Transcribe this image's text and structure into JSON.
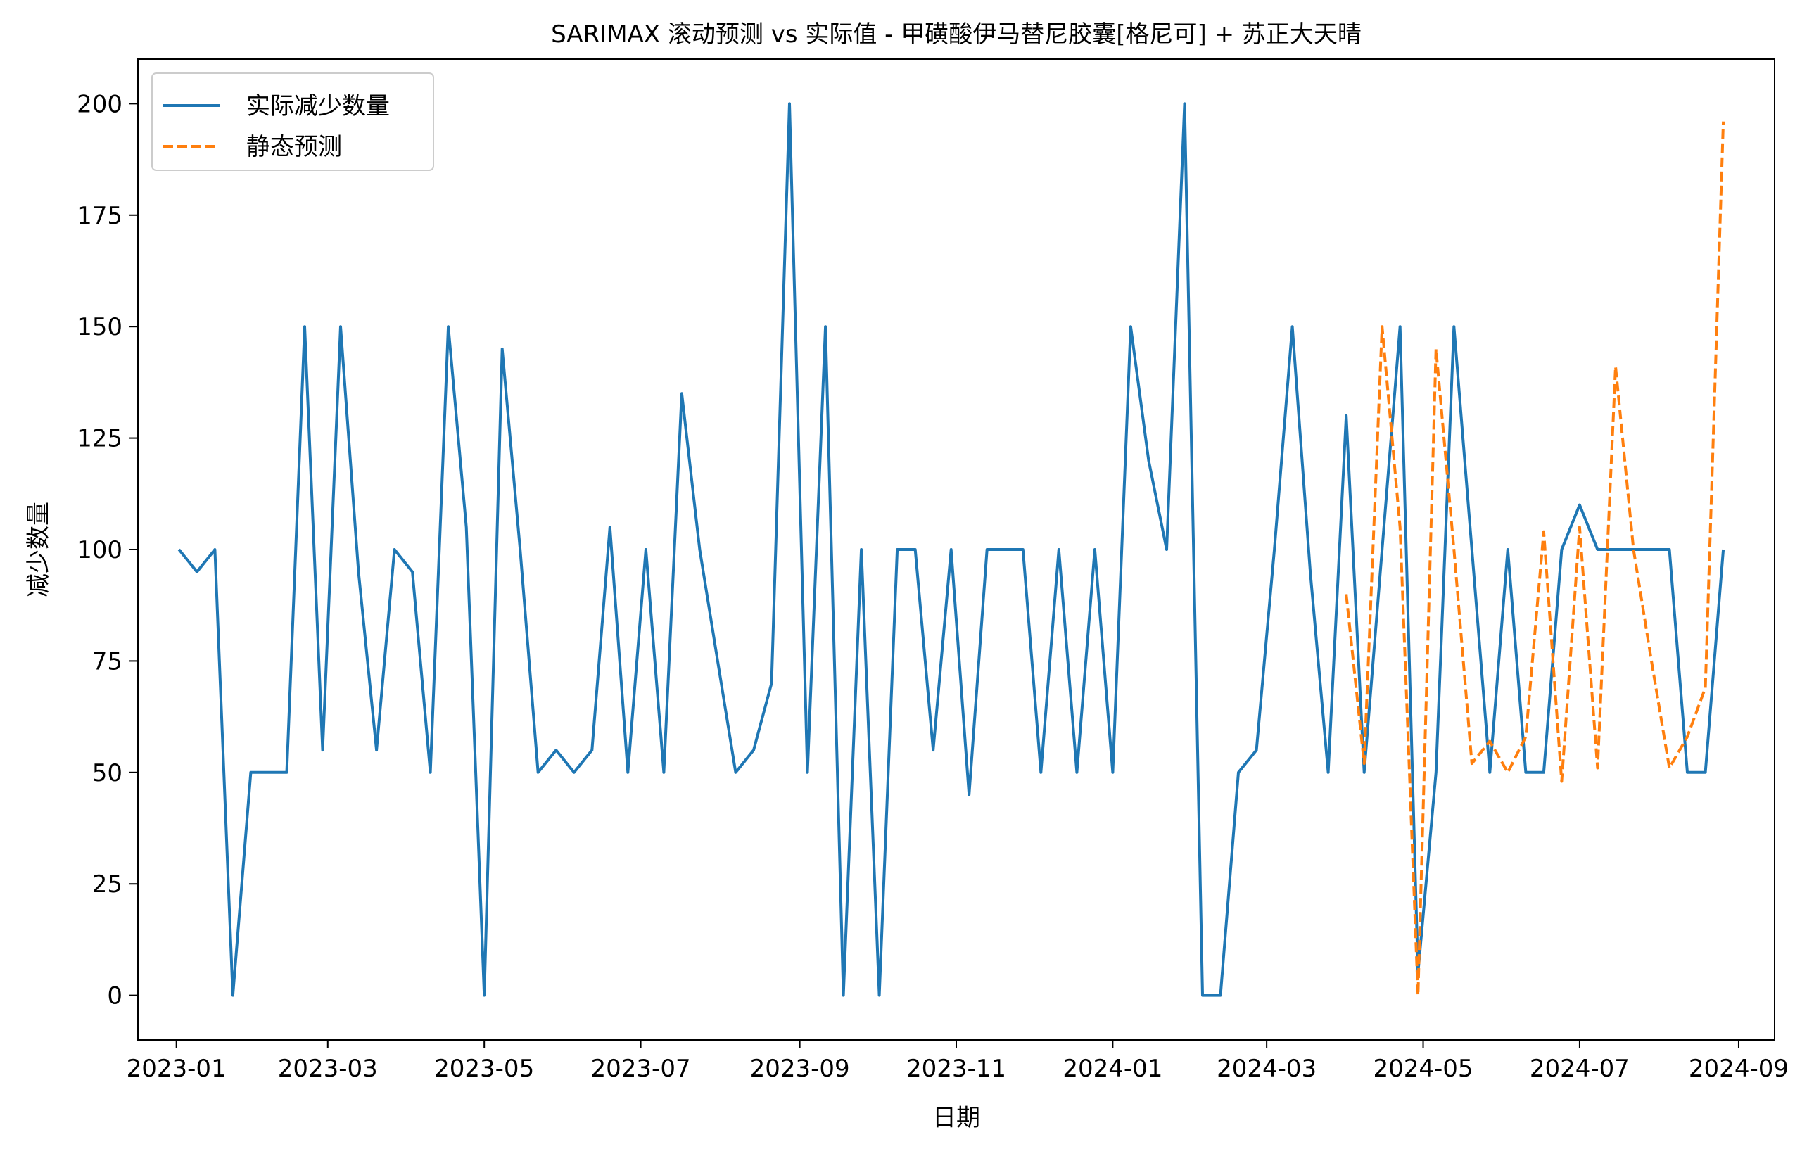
{
  "chart_data": {
    "type": "line",
    "title": "SARIMAX 滚动预测 vs 实际值 - 甲磺酸伊马替尼胶囊[格尼可] + 苏正大天晴",
    "xlabel": "日期",
    "ylabel": "减少数量",
    "xlim": [
      "2022-12-17",
      "2024-09-15"
    ],
    "ylim": [
      -10,
      210
    ],
    "grid": false,
    "legend_position": "top-left",
    "x_ticks": [
      "2023-01-01",
      "2023-03-01",
      "2023-05-01",
      "2023-07-01",
      "2023-09-01",
      "2023-11-01",
      "2024-01-01",
      "2024-03-01",
      "2024-05-01",
      "2024-07-01",
      "2024-09-01"
    ],
    "x_tick_labels": [
      "2023-01",
      "2023-03",
      "2023-05",
      "2023-07",
      "2023-09",
      "2023-11",
      "2024-01",
      "2024-03",
      "2024-05",
      "2024-07",
      "2024-09"
    ],
    "y_ticks": [
      0,
      25,
      50,
      75,
      100,
      125,
      150,
      175,
      200
    ],
    "y_tick_labels": [
      "0",
      "25",
      "50",
      "75",
      "100",
      "125",
      "150",
      "175",
      "200"
    ],
    "series": [
      {
        "name": "实际减少数量",
        "color": "#1f77b4",
        "style": "solid",
        "x": [
          "2023-01-02",
          "2023-01-09",
          "2023-01-16",
          "2023-01-23",
          "2023-01-30",
          "2023-02-06",
          "2023-02-13",
          "2023-02-20",
          "2023-02-27",
          "2023-03-06",
          "2023-03-13",
          "2023-03-20",
          "2023-03-27",
          "2023-04-03",
          "2023-04-10",
          "2023-04-17",
          "2023-04-24",
          "2023-05-01",
          "2023-05-08",
          "2023-05-15",
          "2023-05-22",
          "2023-05-29",
          "2023-06-05",
          "2023-06-12",
          "2023-06-19",
          "2023-06-26",
          "2023-07-03",
          "2023-07-10",
          "2023-07-17",
          "2023-07-24",
          "2023-07-31",
          "2023-08-07",
          "2023-08-14",
          "2023-08-21",
          "2023-08-28",
          "2023-09-04",
          "2023-09-11",
          "2023-09-18",
          "2023-09-25",
          "2023-10-02",
          "2023-10-09",
          "2023-10-16",
          "2023-10-23",
          "2023-10-30",
          "2023-11-06",
          "2023-11-13",
          "2023-11-20",
          "2023-11-27",
          "2023-12-04",
          "2023-12-11",
          "2023-12-18",
          "2023-12-25",
          "2024-01-01",
          "2024-01-08",
          "2024-01-15",
          "2024-01-22",
          "2024-01-29",
          "2024-02-05",
          "2024-02-12",
          "2024-02-19",
          "2024-02-26",
          "2024-03-04",
          "2024-03-11",
          "2024-03-18",
          "2024-03-25",
          "2024-04-01",
          "2024-04-08",
          "2024-04-15",
          "2024-04-22",
          "2024-04-29",
          "2024-05-06",
          "2024-05-13",
          "2024-05-20",
          "2024-05-27",
          "2024-06-03",
          "2024-06-10",
          "2024-06-17",
          "2024-06-24",
          "2024-07-01",
          "2024-07-08",
          "2024-07-15",
          "2024-07-22",
          "2024-07-29",
          "2024-08-05",
          "2024-08-12",
          "2024-08-19",
          "2024-08-26"
        ],
        "values": [
          100,
          95,
          100,
          0,
          50,
          50,
          50,
          150,
          55,
          150,
          95,
          55,
          100,
          95,
          50,
          150,
          105,
          0,
          145,
          100,
          50,
          55,
          50,
          55,
          105,
          50,
          100,
          50,
          135,
          100,
          75,
          50,
          55,
          70,
          200,
          50,
          150,
          0,
          100,
          0,
          100,
          100,
          55,
          100,
          45,
          100,
          100,
          100,
          50,
          100,
          50,
          100,
          50,
          150,
          120,
          100,
          200,
          0,
          0,
          50,
          55,
          100,
          150,
          95,
          50,
          130,
          50,
          100,
          150,
          5,
          50,
          150,
          100,
          50,
          100,
          50,
          50,
          100,
          110,
          100,
          100,
          100,
          100,
          100,
          50,
          50,
          100
        ]
      },
      {
        "name": "静态预测",
        "color": "#ff7f0e",
        "style": "dashed",
        "x": [
          "2024-04-01",
          "2024-04-08",
          "2024-04-15",
          "2024-04-22",
          "2024-04-29",
          "2024-05-06",
          "2024-05-13",
          "2024-05-20",
          "2024-05-27",
          "2024-06-03",
          "2024-06-10",
          "2024-06-17",
          "2024-06-24",
          "2024-07-01",
          "2024-07-08",
          "2024-07-15",
          "2024-07-22",
          "2024-07-29",
          "2024-08-05",
          "2024-08-12",
          "2024-08-19",
          "2024-08-26"
        ],
        "values": [
          90,
          52,
          150,
          105,
          0,
          145,
          100,
          52,
          57,
          50,
          58,
          104,
          48,
          105,
          51,
          141,
          100,
          75,
          51,
          58,
          69,
          196
        ]
      }
    ]
  }
}
